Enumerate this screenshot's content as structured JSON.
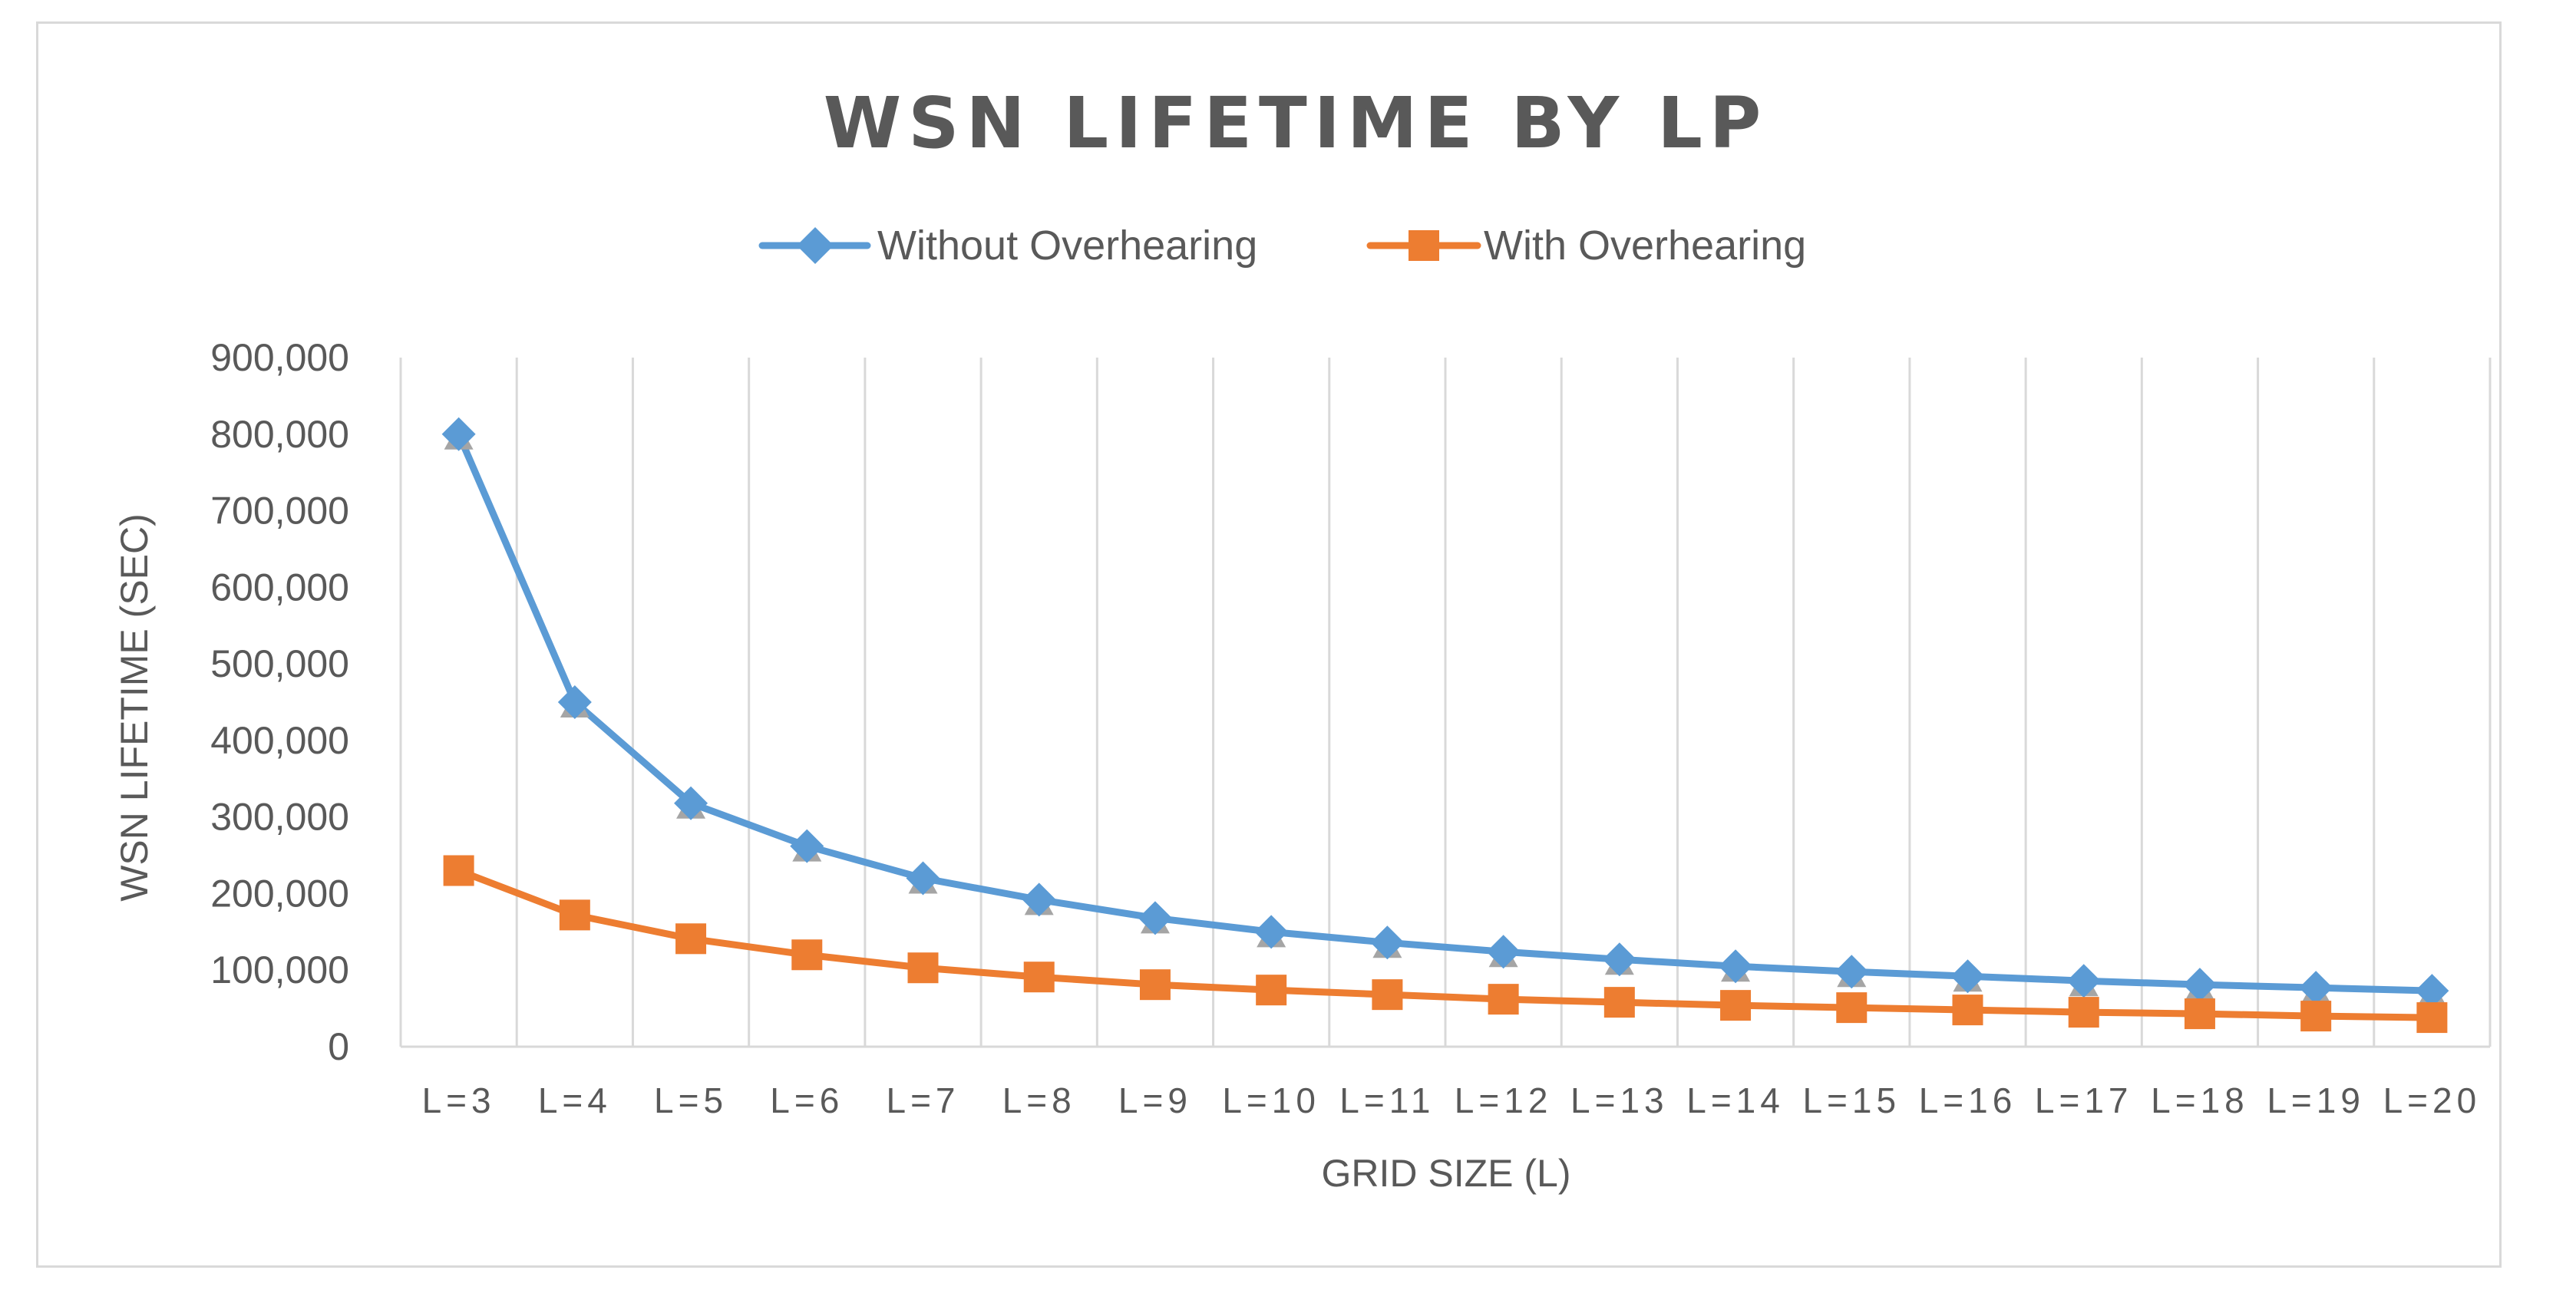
{
  "colors": {
    "series_a": "#5b9bd5",
    "series_b": "#ed7d31",
    "marker_edge": "#a5a5a5",
    "grid": "#d9d9d9",
    "text": "#595959"
  },
  "chart_data": {
    "type": "line",
    "title": "WSN LIFETIME BY LP",
    "xlabel": "GRID SIZE (L)",
    "ylabel": "WSN LIFETIME (SEC)",
    "ylim": [
      0,
      900000
    ],
    "y_ticks": [
      0,
      100000,
      200000,
      300000,
      400000,
      500000,
      600000,
      700000,
      800000,
      900000
    ],
    "y_tick_labels": [
      "0",
      "100,000",
      "200,000",
      "300,000",
      "400,000",
      "500,000",
      "600,000",
      "700,000",
      "800,000",
      "900,000"
    ],
    "categories": [
      "L=3",
      "L=4",
      "L=5",
      "L=6",
      "L=7",
      "L=8",
      "L=9",
      "L=10",
      "L=11",
      "L=12",
      "L=13",
      "L=14",
      "L=15",
      "L=16",
      "L=17",
      "L=18",
      "L=19",
      "L=20"
    ],
    "legend_position": "top-center",
    "grid": "vertical",
    "series": [
      {
        "name": "Without Overhearing",
        "marker": "diamond",
        "values": [
          800000,
          450000,
          318000,
          262000,
          220000,
          192000,
          168000,
          150000,
          136000,
          124000,
          114000,
          105000,
          98000,
          92000,
          86000,
          81000,
          77000,
          73000
        ]
      },
      {
        "name": "With Overhearing",
        "marker": "square",
        "values": [
          230000,
          172000,
          141000,
          120000,
          103000,
          91000,
          81000,
          74000,
          68000,
          62000,
          58000,
          54000,
          51000,
          48000,
          45000,
          43000,
          40000,
          38000
        ]
      }
    ]
  }
}
